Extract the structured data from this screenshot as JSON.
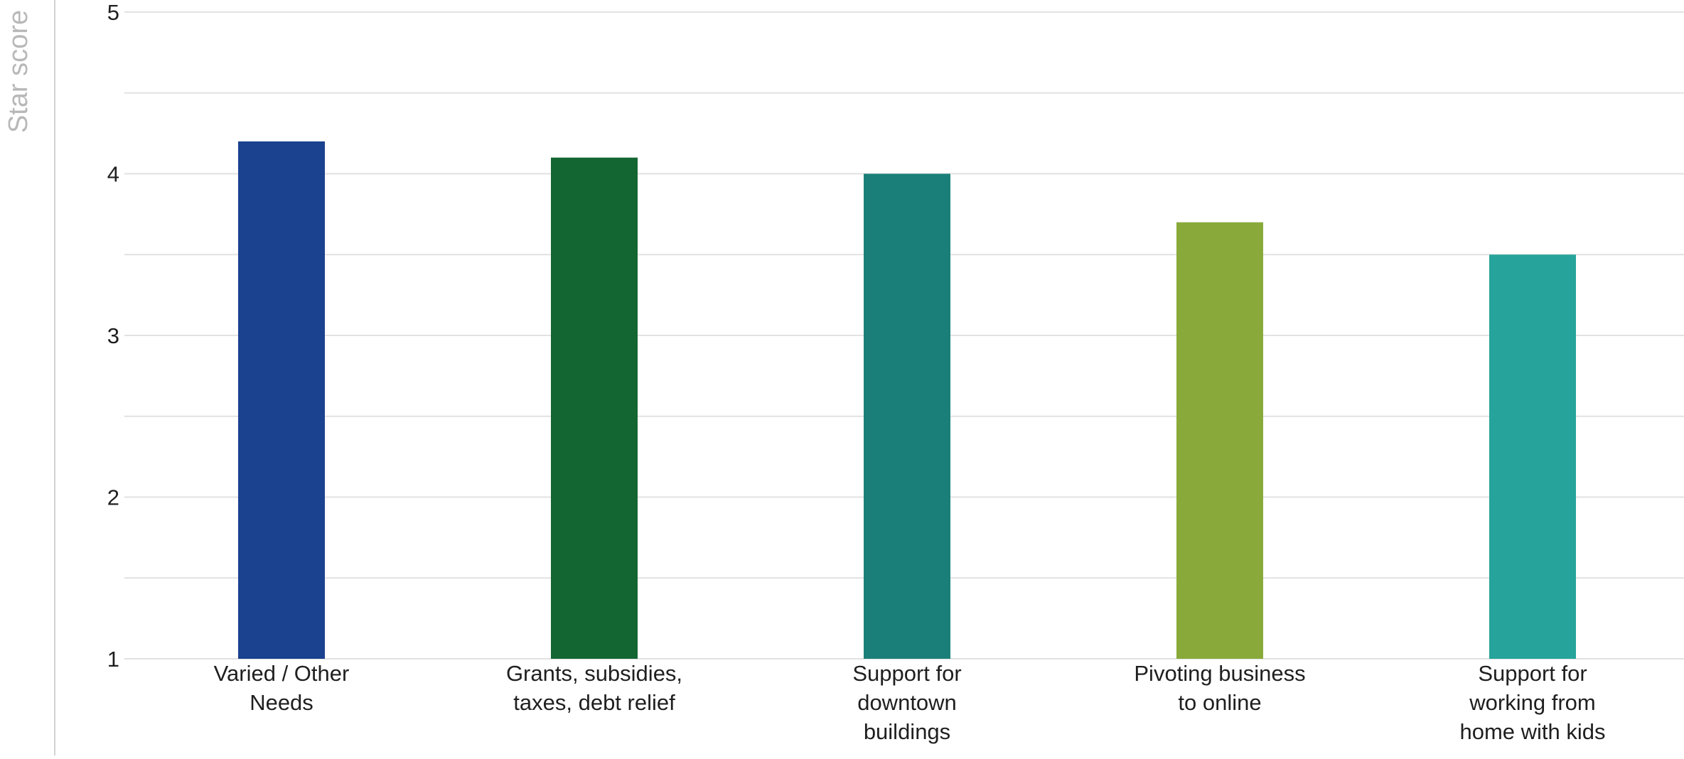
{
  "chart_data": {
    "type": "bar",
    "title": "",
    "xlabel": "",
    "ylabel": "Star score",
    "ylim": [
      1,
      5
    ],
    "yticks": [
      1,
      2,
      3,
      4,
      5
    ],
    "grid": true,
    "legend": "none",
    "categories": [
      [
        "Varied / Other",
        "Needs"
      ],
      [
        "Grants, subsidies,",
        "taxes, debt relief"
      ],
      [
        "Support for",
        "downtown",
        "buildings"
      ],
      [
        "Pivoting business",
        "to online"
      ],
      [
        "Support for",
        "working from",
        "home with kids"
      ]
    ],
    "values": [
      4.2,
      4.1,
      4.0,
      3.7,
      3.5
    ],
    "colors": [
      "#1b428f",
      "#136632",
      "#1b7f79",
      "#89aa3a",
      "#26a49b"
    ]
  }
}
